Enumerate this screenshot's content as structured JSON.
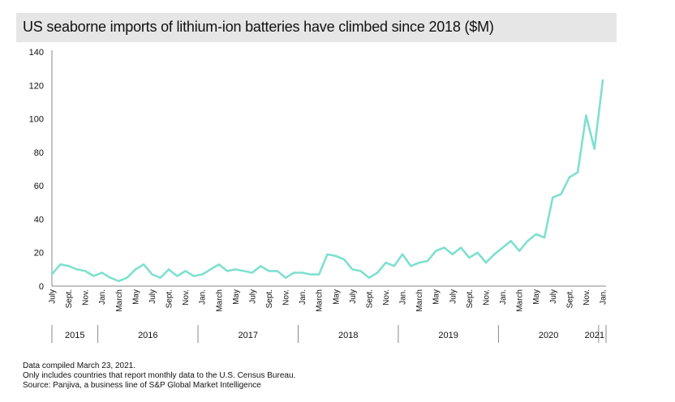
{
  "chart_data": {
    "type": "line",
    "title": "US seaborne imports of lithium-ion batteries have climbed since 2018 ($M)",
    "xlabel": "",
    "ylabel": "",
    "ylim": [
      0,
      140
    ],
    "yticks": [
      "0",
      "20",
      "40",
      "60",
      "80",
      "100",
      "120",
      "140"
    ],
    "x": [
      "2015-07",
      "2015-08",
      "2015-09",
      "2015-10",
      "2015-11",
      "2015-12",
      "2016-01",
      "2016-02",
      "2016-03",
      "2016-04",
      "2016-05",
      "2016-06",
      "2016-07",
      "2016-08",
      "2016-09",
      "2016-10",
      "2016-11",
      "2016-12",
      "2017-01",
      "2017-02",
      "2017-03",
      "2017-04",
      "2017-05",
      "2017-06",
      "2017-07",
      "2017-08",
      "2017-09",
      "2017-10",
      "2017-11",
      "2017-12",
      "2018-01",
      "2018-02",
      "2018-03",
      "2018-04",
      "2018-05",
      "2018-06",
      "2018-07",
      "2018-08",
      "2018-09",
      "2018-10",
      "2018-11",
      "2018-12",
      "2019-01",
      "2019-02",
      "2019-03",
      "2019-04",
      "2019-05",
      "2019-06",
      "2019-07",
      "2019-08",
      "2019-09",
      "2019-10",
      "2019-11",
      "2019-12",
      "2020-01",
      "2020-02",
      "2020-03",
      "2020-04",
      "2020-05",
      "2020-06",
      "2020-07",
      "2020-08",
      "2020-09",
      "2020-10",
      "2020-11",
      "2020-12",
      "2021-01"
    ],
    "series": [
      {
        "name": "",
        "color": "#7fe0cf",
        "values": [
          7,
          13,
          12,
          10,
          9,
          6,
          8,
          5,
          3,
          5,
          10,
          13,
          7,
          5,
          10,
          6,
          9,
          6,
          7,
          10,
          13,
          9,
          10,
          9,
          8,
          12,
          9,
          9,
          5,
          8,
          8,
          7,
          7,
          19,
          18,
          16,
          10,
          9,
          5,
          8,
          14,
          12,
          19,
          12,
          14,
          15,
          21,
          23,
          19,
          23,
          17,
          20,
          14,
          19,
          23,
          27,
          21,
          27,
          31,
          29,
          53,
          55,
          65,
          68,
          102,
          82,
          123
        ]
      }
    ],
    "tick_labels": [
      "July",
      "Sept.",
      "Nov.",
      "Jan.",
      "March",
      "May",
      "July",
      "Sept.",
      "Nov.",
      "Jan.",
      "March",
      "May",
      "July",
      "Sept.",
      "Nov.",
      "Jan.",
      "March",
      "May",
      "July",
      "Sept.",
      "Nov.",
      "Jan.",
      "March",
      "May",
      "July",
      "Sept.",
      "Nov.",
      "Jan.",
      "March",
      "May",
      "July",
      "Sept.",
      "Nov.",
      "Jan."
    ],
    "years": [
      "2015",
      "2016",
      "2017",
      "2018",
      "2019",
      "2020",
      "2021"
    ],
    "grid": false,
    "legend": "none"
  },
  "footnotes": {
    "line1": "Data compiled March 23, 2021.",
    "line2": "Only includes countries that report monthly data to the U.S. Census Bureau.",
    "line3": "Source: Panjiva, a business line of S&P Global Market Intelligence"
  }
}
